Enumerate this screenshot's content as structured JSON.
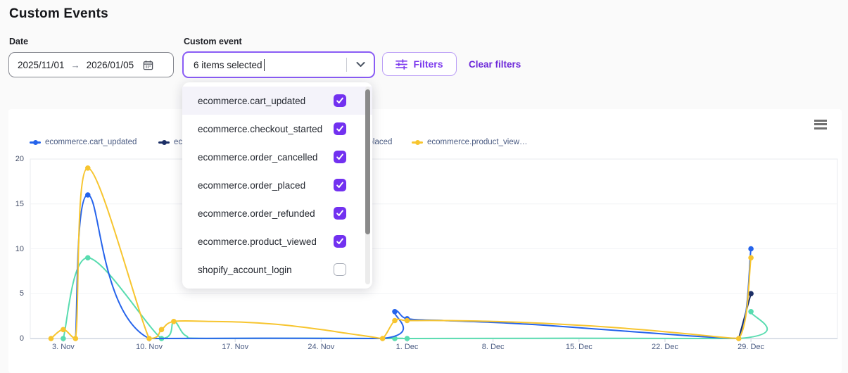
{
  "page": {
    "title": "Custom Events"
  },
  "theme": {
    "accent_purple": "#7c3aed",
    "select_border_purple": "#8a5cf5",
    "checkbox_purple": "#7231f0",
    "clear_link_purple": "#6d28d9",
    "page_background": "#fafafa",
    "card_background": "#ffffff"
  },
  "filters": {
    "date": {
      "label": "Date",
      "start": "2025/11/01",
      "arrow": "→",
      "end": "2026/01/05",
      "icon": "calendar-icon"
    },
    "custom_event": {
      "label": "Custom event",
      "value": "6 items selected",
      "icon": "chevron-down-icon"
    },
    "filters_button": {
      "label": "Filters",
      "icon": "sliders-icon"
    },
    "clear_filters": "Clear filters"
  },
  "dropdown": {
    "options": [
      {
        "label": "ecommerce.cart_updated",
        "checked": true,
        "highlighted": true
      },
      {
        "label": "ecommerce.checkout_started",
        "checked": true,
        "highlighted": false
      },
      {
        "label": "ecommerce.order_cancelled",
        "checked": true,
        "highlighted": false
      },
      {
        "label": "ecommerce.order_placed",
        "checked": true,
        "highlighted": false
      },
      {
        "label": "ecommerce.order_refunded",
        "checked": true,
        "highlighted": false
      },
      {
        "label": "ecommerce.product_viewed",
        "checked": true,
        "highlighted": false
      },
      {
        "label": "shopify_account_login",
        "checked": false,
        "highlighted": false
      }
    ],
    "scrollbar": true
  },
  "chart_data": {
    "type": "line",
    "title": "",
    "menu_icon": "hamburger-menu-icon",
    "x_axis": {
      "start_date": "2025-11-01",
      "tick_labels": [
        "3. Nov",
        "10. Nov",
        "17. Nov",
        "24. Nov",
        "1. Dec",
        "8. Dec",
        "15. Dec",
        "22. Dec",
        "29. Dec"
      ],
      "tick_days": [
        2,
        9,
        16,
        23,
        30,
        37,
        44,
        51,
        58
      ]
    },
    "y_axis": {
      "tick_labels": [
        0,
        5,
        10,
        15,
        20
      ],
      "range": [
        0,
        20
      ],
      "grid": true
    },
    "legend_position": "top-left",
    "legend": [
      {
        "label": "ecommerce.cart_updated",
        "color": "#2563eb",
        "x": 42
      },
      {
        "label": "ecommerce.checkout_started",
        "color": "#1c2f66",
        "x": 225
      },
      {
        "label": "ecommerce.order_placed",
        "color": "#59dcb0",
        "x": 405
      },
      {
        "label": "ecommerce.product_view…",
        "color": "#f7c52f",
        "x": 585
      }
    ],
    "series": [
      {
        "name": "ecommerce.order_placed",
        "color": "#59dcb0",
        "points": [
          [
            2,
            0
          ],
          [
            4,
            9
          ],
          [
            10,
            0
          ],
          [
            11,
            1.9
          ],
          [
            12,
            0.3
          ],
          [
            14,
            0
          ],
          [
            29,
            0
          ],
          [
            30,
            0
          ],
          [
            57,
            0
          ],
          [
            58,
            3
          ]
        ],
        "markers": [
          [
            2,
            0
          ],
          [
            4,
            9
          ],
          [
            10,
            0
          ],
          [
            29,
            0
          ],
          [
            30,
            0
          ],
          [
            58,
            3
          ]
        ]
      },
      {
        "name": "ecommerce.checkout_started",
        "color": "#1c2f66",
        "points": [
          [
            57,
            0
          ],
          [
            58,
            5
          ]
        ],
        "markers": [
          [
            58,
            5
          ]
        ]
      },
      {
        "name": "ecommerce.cart_updated",
        "color": "#2563eb",
        "points": [
          [
            3,
            0
          ],
          [
            4,
            16
          ],
          [
            9,
            0
          ],
          [
            28,
            0
          ],
          [
            29,
            3
          ],
          [
            30,
            2.2
          ],
          [
            33,
            2.0
          ],
          [
            37,
            1.8
          ],
          [
            41,
            1.5
          ],
          [
            45,
            1.1
          ],
          [
            49,
            0.7
          ],
          [
            53,
            0.3
          ],
          [
            57,
            0
          ],
          [
            58,
            10
          ]
        ],
        "markers": [
          [
            4,
            16
          ],
          [
            29,
            3
          ],
          [
            30,
            2.2
          ],
          [
            58,
            10
          ]
        ]
      },
      {
        "name": "ecommerce.product_viewed",
        "color": "#f7c52f",
        "points": [
          [
            1,
            0
          ],
          [
            2,
            1
          ],
          [
            3,
            0
          ],
          [
            4,
            19
          ],
          [
            9,
            0
          ],
          [
            10,
            1
          ],
          [
            11,
            1.9
          ],
          [
            14,
            1.9
          ],
          [
            17,
            1.8
          ],
          [
            20,
            1.5
          ],
          [
            23,
            1.0
          ],
          [
            25,
            0.6
          ],
          [
            27,
            0.2
          ],
          [
            28,
            0
          ],
          [
            29,
            2
          ],
          [
            30,
            2
          ],
          [
            33,
            2.0
          ],
          [
            37,
            1.9
          ],
          [
            41,
            1.7
          ],
          [
            45,
            1.4
          ],
          [
            49,
            1.0
          ],
          [
            53,
            0.5
          ],
          [
            57,
            0
          ],
          [
            58,
            9
          ]
        ],
        "markers": [
          [
            1,
            0
          ],
          [
            2,
            1
          ],
          [
            3,
            0
          ],
          [
            4,
            19
          ],
          [
            9,
            0
          ],
          [
            10,
            1
          ],
          [
            11,
            1.9
          ],
          [
            28,
            0
          ],
          [
            29,
            2
          ],
          [
            30,
            2
          ],
          [
            57,
            0
          ],
          [
            58,
            9
          ]
        ]
      }
    ]
  }
}
